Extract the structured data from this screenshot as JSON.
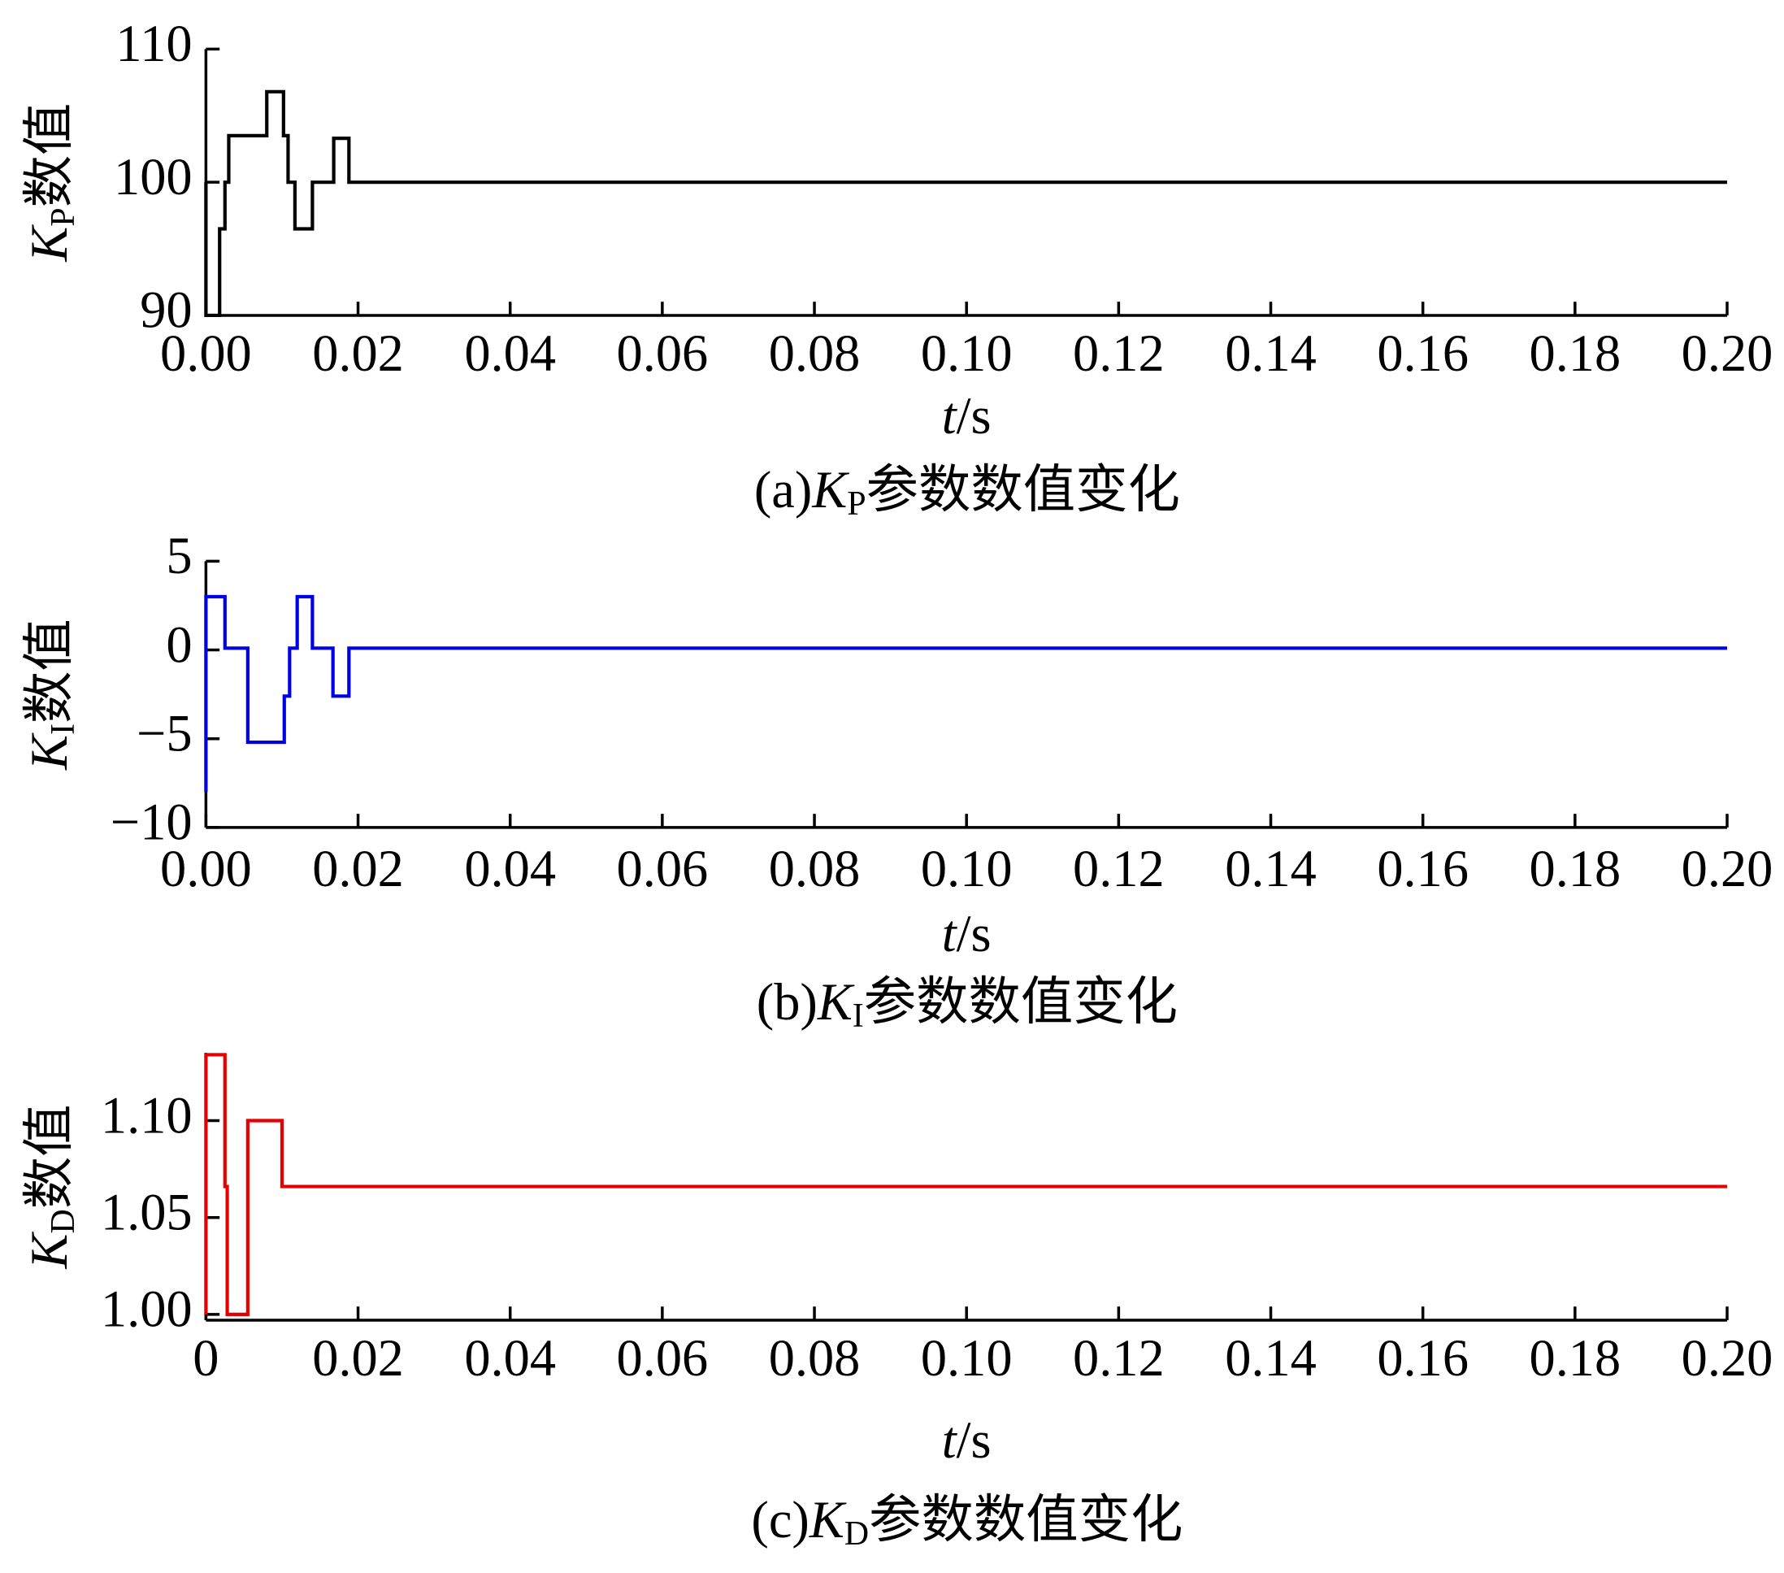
{
  "chart_data": [
    {
      "type": "line",
      "color": "#000000",
      "ylabel": {
        "symbol": "K",
        "subscript": "P",
        "text": "数值"
      },
      "xlabel": {
        "symbol": "t",
        "unit": "/s"
      },
      "caption": {
        "prefix": "(a)",
        "symbol": "K",
        "subscript": "P",
        "text": "参数数值变化"
      },
      "x": [
        0,
        0,
        0.0018,
        0.0018,
        0.0025,
        0.0025,
        0.003,
        0.003,
        0.008,
        0.008,
        0.0102,
        0.0102,
        0.0108,
        0.0108,
        0.0117,
        0.0117,
        0.014,
        0.014,
        0.0168,
        0.0168,
        0.0188,
        0.0188,
        0.2
      ],
      "values": [
        100,
        90,
        90,
        96.5,
        96.5,
        100,
        100,
        103.5,
        103.5,
        106.8,
        106.8,
        103.5,
        103.5,
        100,
        100,
        96.5,
        96.5,
        100,
        100,
        103.3,
        103.3,
        100,
        100
      ],
      "xlim": [
        0,
        0.2
      ],
      "ylim": [
        90,
        110
      ],
      "xticks": [
        {
          "value": 0,
          "label": "0.00"
        },
        {
          "value": 0.02,
          "label": "0.02"
        },
        {
          "value": 0.04,
          "label": "0.04"
        },
        {
          "value": 0.06,
          "label": "0.06"
        },
        {
          "value": 0.08,
          "label": "0.08"
        },
        {
          "value": 0.1,
          "label": "0.10"
        },
        {
          "value": 0.12,
          "label": "0.12"
        },
        {
          "value": 0.14,
          "label": "0.14"
        },
        {
          "value": 0.16,
          "label": "0.16"
        },
        {
          "value": 0.18,
          "label": "0.18"
        },
        {
          "value": 0.2,
          "label": "0.20"
        }
      ],
      "yticks": [
        90,
        100,
        110
      ]
    },
    {
      "type": "line",
      "color": "#0000e6",
      "ylabel": {
        "symbol": "K",
        "subscript": "I",
        "text": "数值"
      },
      "xlabel": {
        "symbol": "t",
        "unit": "/s"
      },
      "caption": {
        "prefix": "(b)",
        "symbol": "K",
        "subscript": "I",
        "text": "参数数值变化"
      },
      "x": [
        0,
        0,
        0.0025,
        0.0025,
        0.0055,
        0.0055,
        0.0103,
        0.0103,
        0.011,
        0.011,
        0.012,
        0.012,
        0.014,
        0.014,
        0.0167,
        0.0167,
        0.0188,
        0.0188,
        0.2
      ],
      "values": [
        -8,
        3,
        3,
        0.1,
        0.1,
        -5.2,
        -5.2,
        -2.6,
        -2.6,
        0.1,
        0.1,
        3,
        3,
        0.1,
        0.1,
        -2.6,
        -2.6,
        0.1,
        0.1
      ],
      "xlim": [
        0,
        0.2
      ],
      "ylim": [
        -10,
        5
      ],
      "xticks": [
        {
          "value": 0,
          "label": "0.00"
        },
        {
          "value": 0.02,
          "label": "0.02"
        },
        {
          "value": 0.04,
          "label": "0.04"
        },
        {
          "value": 0.06,
          "label": "0.06"
        },
        {
          "value": 0.08,
          "label": "0.08"
        },
        {
          "value": 0.1,
          "label": "0.10"
        },
        {
          "value": 0.12,
          "label": "0.12"
        },
        {
          "value": 0.14,
          "label": "0.14"
        },
        {
          "value": 0.16,
          "label": "0.16"
        },
        {
          "value": 0.18,
          "label": "0.18"
        },
        {
          "value": 0.2,
          "label": "0.20"
        }
      ],
      "yticks": [
        {
          "value": -10,
          "label": "−10"
        },
        {
          "value": -5,
          "label": "−5"
        },
        0,
        5
      ]
    },
    {
      "type": "line",
      "color": "#e60000",
      "ylabel": {
        "symbol": "K",
        "subscript": "D",
        "text": "数值"
      },
      "xlabel": {
        "symbol": "t",
        "unit": "/s"
      },
      "caption": {
        "prefix": "(c)",
        "symbol": "K",
        "subscript": "D",
        "text": "参数数值变化"
      },
      "x": [
        0,
        0,
        0.0025,
        0.0025,
        0.0028,
        0.0028,
        0.0055,
        0.0055,
        0.01,
        0.01,
        0.2
      ],
      "values": [
        1.0,
        1.134,
        1.134,
        1.066,
        1.066,
        1.0,
        1.0,
        1.1,
        1.1,
        1.066,
        1.066
      ],
      "xlim": [
        0,
        0.2
      ],
      "ylim": [
        0.997,
        1.135
      ],
      "xticks": [
        0,
        {
          "value": 0.02,
          "label": "0.02"
        },
        {
          "value": 0.04,
          "label": "0.04"
        },
        {
          "value": 0.06,
          "label": "0.06"
        },
        {
          "value": 0.08,
          "label": "0.08"
        },
        {
          "value": 0.1,
          "label": "0.10"
        },
        {
          "value": 0.12,
          "label": "0.12"
        },
        {
          "value": 0.14,
          "label": "0.14"
        },
        {
          "value": 0.16,
          "label": "0.16"
        },
        {
          "value": 0.18,
          "label": "0.18"
        },
        {
          "value": 0.2,
          "label": "0.20"
        }
      ],
      "yticks": [
        {
          "value": 1.0,
          "label": "1.00"
        },
        {
          "value": 1.05,
          "label": "1.05"
        },
        {
          "value": 1.1,
          "label": "1.10"
        }
      ]
    }
  ]
}
